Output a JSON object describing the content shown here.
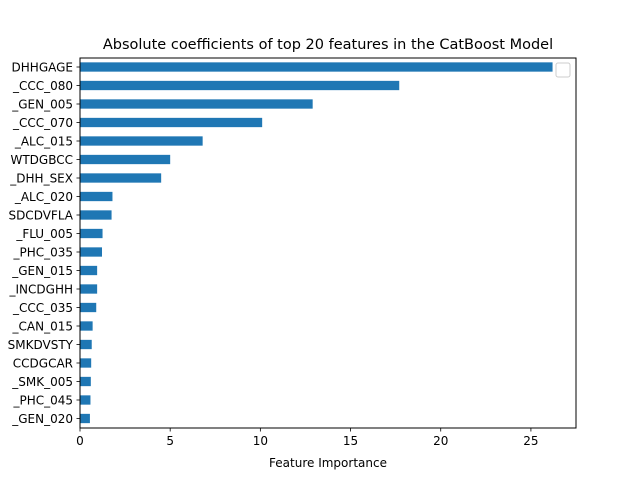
{
  "chart_data": {
    "type": "bar",
    "orientation": "horizontal",
    "title": "Absolute coefficients of top 20 features in the CatBoost Model",
    "xlabel": "Feature Importance",
    "ylabel": "",
    "xlim": [
      0,
      27.5
    ],
    "xticks": [
      0,
      5,
      10,
      15,
      20,
      25
    ],
    "grid": false,
    "legend": "top-right",
    "legend_entries": [
      ""
    ],
    "bar_color": "#1f77b4",
    "categories": [
      "DHHGAGE",
      "_CCC_080",
      "_GEN_005",
      "_CCC_070",
      "_ALC_015",
      "WTDGBCC",
      "_DHH_SEX",
      "_ALC_020",
      "SDCDVFLA",
      "_FLU_005",
      "_PHC_035",
      "_GEN_015",
      "_INCDGHH",
      "_CCC_035",
      "_CAN_015",
      "SMKDVSTY",
      "CCDGCAR",
      "_SMK_005",
      "_PHC_045",
      "_GEN_020"
    ],
    "values": [
      26.2,
      17.7,
      12.9,
      10.1,
      6.8,
      5.0,
      4.5,
      1.8,
      1.75,
      1.25,
      1.22,
      0.95,
      0.95,
      0.9,
      0.7,
      0.65,
      0.62,
      0.6,
      0.58,
      0.55
    ]
  }
}
